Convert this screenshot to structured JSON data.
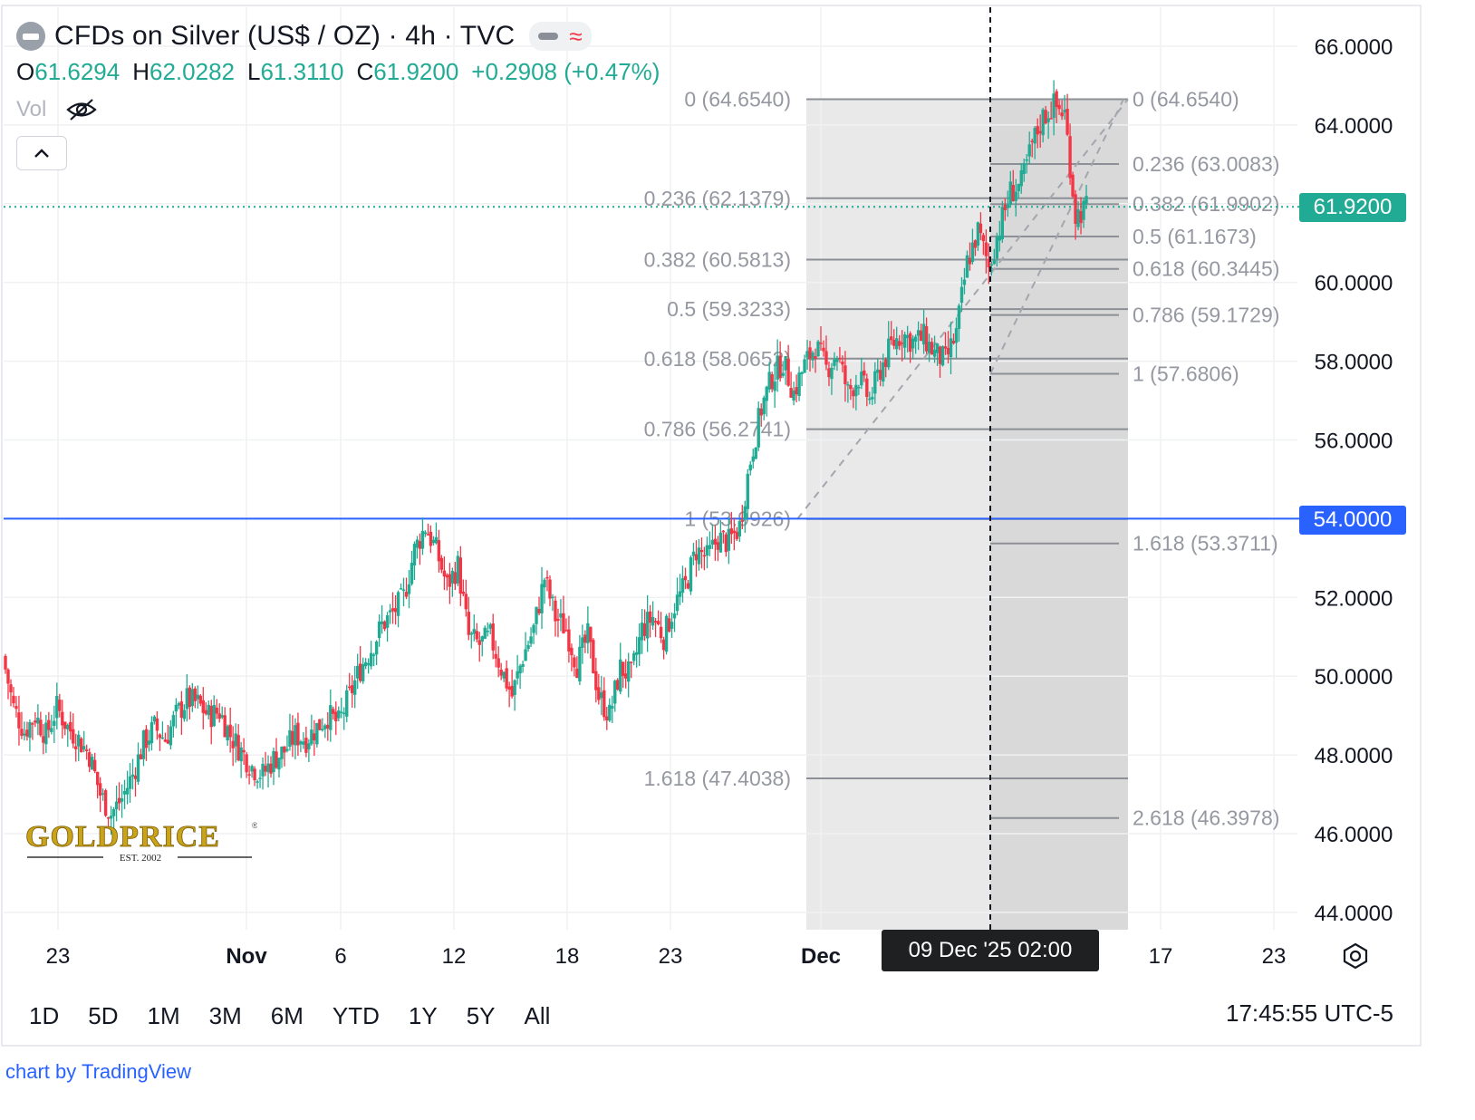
{
  "header": {
    "title": "CFDs on Silver (US$ / OZ) · 4h · TVC",
    "wave_glyph": "≈",
    "ohlc": {
      "o_label": "O",
      "o": "61.6294",
      "h_label": "H",
      "h": "62.0282",
      "l_label": "L",
      "l": "61.3110",
      "c_label": "C",
      "c": "61.9200",
      "change": "+0.2908 (+0.47%)"
    },
    "vol_label": "Vol"
  },
  "price_tags": {
    "last": "61.9200",
    "crosshair": "54.0000",
    "crosshair_date": "09 Dec '25   02:00"
  },
  "ranges": [
    "1D",
    "5D",
    "1M",
    "3M",
    "6M",
    "YTD",
    "1Y",
    "5Y",
    "All"
  ],
  "clock": "17:45:55 UTC-5",
  "credit": "chart by TradingView",
  "logo": {
    "text": "GOLDPRICE",
    "sub": "EST. 2002",
    "reg": "®"
  },
  "colors": {
    "up": "#22ab94",
    "down": "#f23645",
    "crosshair": "#2962ff",
    "fib": "#9598a1"
  },
  "chart_data": {
    "type": "candlestick",
    "y_axis_ticks": [
      "66.0000",
      "64.0000",
      "60.0000",
      "58.0000",
      "56.0000",
      "52.0000",
      "50.0000",
      "48.0000",
      "46.0000",
      "44.0000"
    ],
    "ylim": [
      43.5,
      66.5
    ],
    "x_tick_labels": [
      "23",
      "Nov",
      "6",
      "12",
      "18",
      "23",
      "Dec",
      "17",
      "23"
    ],
    "horizontal_line": 54.0,
    "last_price_line": 61.92,
    "fib_retracement_left": [
      {
        "label": "0 (64.6540)",
        "value": 64.654
      },
      {
        "label": "0.236 (62.1379)",
        "value": 62.1379
      },
      {
        "label": "0.382 (60.5813)",
        "value": 60.5813
      },
      {
        "label": "0.5 (59.3233)",
        "value": 59.3233
      },
      {
        "label": "0.618 (58.0652)",
        "value": 58.0652
      },
      {
        "label": "0.786 (56.2741)",
        "value": 56.2741
      },
      {
        "label": "1 (53.9926)",
        "value": 53.9926
      },
      {
        "label": "1.618 (47.4038)",
        "value": 47.4038
      }
    ],
    "fib_retracement_right": [
      {
        "label": "0 (64.6540)",
        "value": 64.654
      },
      {
        "label": "0.236 (63.0083)",
        "value": 63.0083
      },
      {
        "label": "0.382 (61.9902)",
        "value": 61.9902
      },
      {
        "label": "0.5 (61.1673)",
        "value": 61.1673
      },
      {
        "label": "0.618 (60.3445)",
        "value": 60.3445
      },
      {
        "label": "0.786 (59.1729)",
        "value": 59.1729
      },
      {
        "label": "1 (57.6806)",
        "value": 57.6806
      },
      {
        "label": "1.618 (53.3711)",
        "value": 53.3711
      },
      {
        "label": "2.618 (46.3978)",
        "value": 46.3978
      }
    ],
    "price_path_anchors": [
      [
        0,
        50.5
      ],
      [
        1,
        49.2
      ],
      [
        2,
        48.6
      ],
      [
        3,
        49.0
      ],
      [
        4,
        48.5
      ],
      [
        5,
        49.2
      ],
      [
        6,
        48.7
      ],
      [
        7,
        48.4
      ],
      [
        8,
        48.0
      ],
      [
        9,
        47.0
      ],
      [
        10,
        46.5
      ],
      [
        11,
        46.9
      ],
      [
        12,
        47.5
      ],
      [
        13,
        48.3
      ],
      [
        14,
        48.7
      ],
      [
        15,
        48.4
      ],
      [
        16,
        49.0
      ],
      [
        17,
        49.4
      ],
      [
        18,
        49.3
      ],
      [
        19,
        49.0
      ],
      [
        20,
        49.1
      ],
      [
        21,
        48.5
      ],
      [
        22,
        48.1
      ],
      [
        23,
        47.7
      ],
      [
        24,
        47.5
      ],
      [
        25,
        47.9
      ],
      [
        26,
        48.1
      ],
      [
        27,
        48.5
      ],
      [
        28,
        48.4
      ],
      [
        29,
        48.7
      ],
      [
        30,
        49.0
      ],
      [
        31,
        48.8
      ],
      [
        32,
        49.5
      ],
      [
        33,
        50.2
      ],
      [
        34,
        50.7
      ],
      [
        35,
        51.3
      ],
      [
        36,
        51.6
      ],
      [
        37,
        52.0
      ],
      [
        38,
        53.2
      ],
      [
        39,
        53.8
      ],
      [
        40,
        53.2
      ],
      [
        41,
        52.3
      ],
      [
        42,
        52.8
      ],
      [
        43,
        51.0
      ],
      [
        44,
        50.8
      ],
      [
        45,
        51.0
      ],
      [
        46,
        50.2
      ],
      [
        47,
        49.5
      ],
      [
        48,
        50.5
      ],
      [
        49,
        51.2
      ],
      [
        50,
        52.5
      ],
      [
        51,
        51.5
      ],
      [
        52,
        51.2
      ],
      [
        53,
        50.3
      ],
      [
        54,
        51.0
      ],
      [
        55,
        49.5
      ],
      [
        56,
        49.0
      ],
      [
        57,
        50.2
      ],
      [
        58,
        50.0
      ],
      [
        59,
        51.2
      ],
      [
        60,
        51.5
      ],
      [
        61,
        51.0
      ],
      [
        62,
        51.8
      ],
      [
        63,
        52.3
      ],
      [
        64,
        53.2
      ],
      [
        65,
        53.0
      ],
      [
        66,
        53.5
      ],
      [
        67,
        53.4
      ],
      [
        68,
        53.8
      ],
      [
        69,
        55.5
      ],
      [
        70,
        56.8
      ],
      [
        71,
        57.6
      ],
      [
        72,
        58.0
      ],
      [
        73,
        57.2
      ],
      [
        74,
        57.9
      ],
      [
        75,
        58.4
      ],
      [
        76,
        57.8
      ],
      [
        77,
        58.2
      ],
      [
        78,
        57.2
      ],
      [
        79,
        57.6
      ],
      [
        80,
        57.0
      ],
      [
        81,
        57.8
      ],
      [
        82,
        58.4
      ],
      [
        83,
        58.7
      ],
      [
        84,
        58.5
      ],
      [
        85,
        58.6
      ],
      [
        86,
        58.2
      ],
      [
        87,
        58.0
      ],
      [
        88,
        58.7
      ],
      [
        89,
        60.5
      ],
      [
        90,
        61.3
      ],
      [
        91,
        60.4
      ],
      [
        92,
        61.4
      ],
      [
        93,
        62.3
      ],
      [
        94,
        62.5
      ],
      [
        95,
        63.5
      ],
      [
        96,
        64.2
      ],
      [
        97,
        64.5
      ],
      [
        98,
        64.3
      ],
      [
        99,
        61.7
      ],
      [
        100,
        61.9
      ]
    ]
  }
}
